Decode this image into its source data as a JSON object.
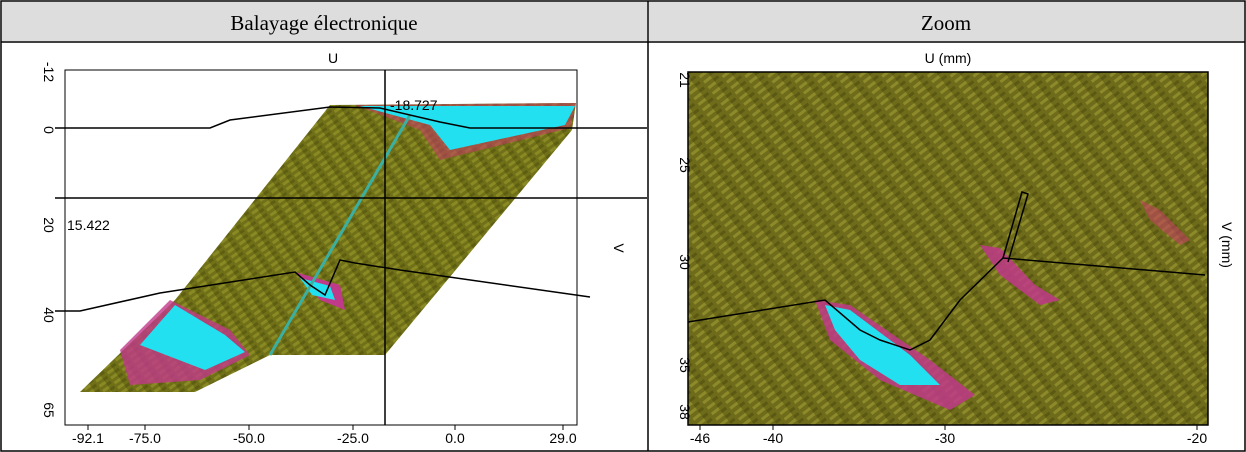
{
  "table": {
    "headers": [
      "Balayage électronique",
      "Zoom"
    ]
  },
  "panels": [
    {
      "x_label": "U",
      "y_label": "V",
      "x_ticks": [
        "-92.1",
        "-75.0",
        "-50.0",
        "-25.0",
        "0.0",
        "29.0"
      ],
      "y_ticks": [
        "-12",
        "0",
        "20",
        "40",
        "65"
      ],
      "annotations": [
        "-18.727",
        "15.422"
      ]
    },
    {
      "x_label": "U (mm)",
      "y_label": "V (mm)",
      "x_ticks": [
        "-46",
        "-40",
        "-30",
        "-20"
      ],
      "y_ticks": [
        "21",
        "25",
        "30",
        "35",
        "38"
      ]
    }
  ]
}
